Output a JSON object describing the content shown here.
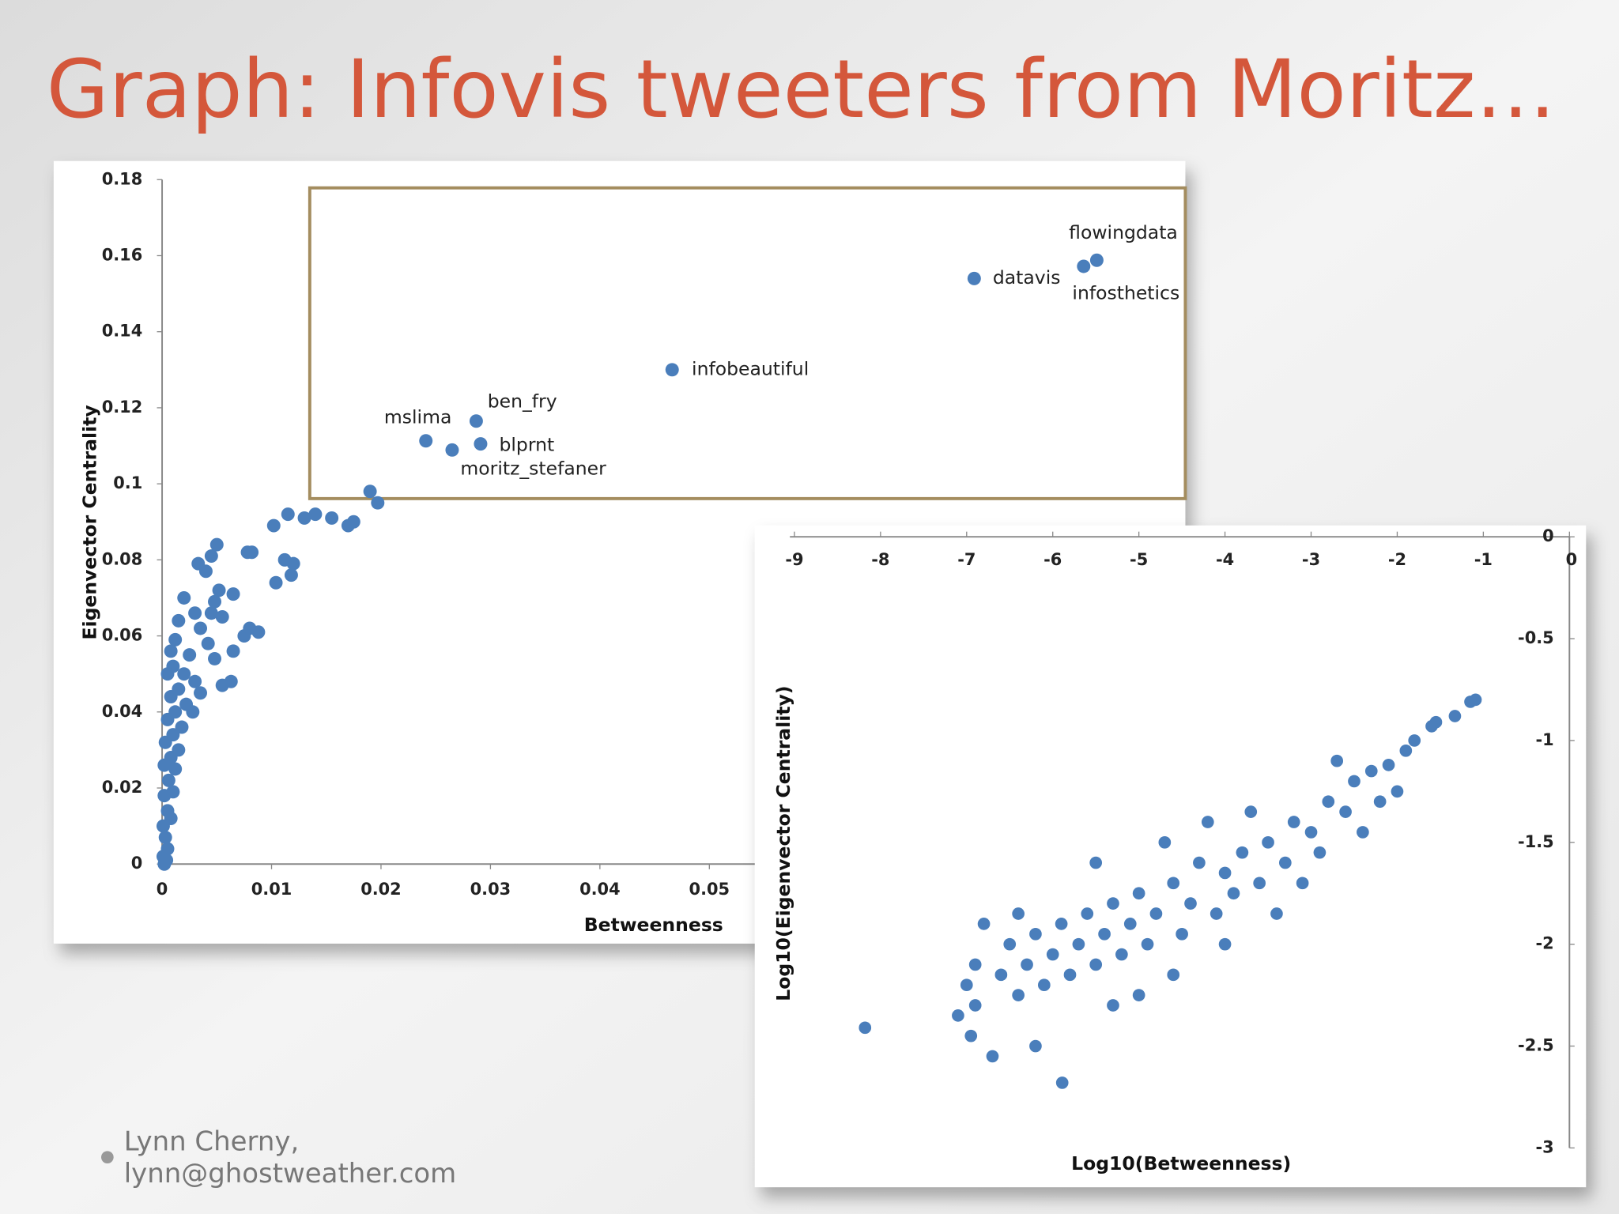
{
  "title": "Graph: Infovis tweeters from Moritz…",
  "footer": [
    "Lynn Cherny,",
    "lynn@ghostweather.com"
  ],
  "chart_data": [
    {
      "type": "scatter",
      "xlabel": "Betweenness",
      "ylabel": "Eigenvector Centrality",
      "color": "#4a7ebb",
      "xlim": [
        0,
        0.09
      ],
      "ylim": [
        0,
        0.18
      ],
      "xticks": [
        0,
        0.01,
        0.02,
        0.03,
        0.04,
        0.05
      ],
      "yticks": [
        0,
        0.02,
        0.04,
        0.06,
        0.08,
        0.1,
        0.12,
        0.14,
        0.16,
        0.18
      ],
      "labels": [
        "flowingdata",
        "infosthetics",
        "datavis",
        "infobeautiful",
        "ben_fry",
        "blprnt",
        "mslima",
        "moritz_stefaner",
        null,
        null,
        null,
        null,
        null,
        null,
        null,
        null,
        null,
        null,
        null,
        null,
        null,
        null,
        null,
        null,
        null,
        null,
        null,
        null,
        null,
        null,
        null,
        null,
        null,
        null,
        null,
        null,
        null,
        null,
        null,
        null,
        null,
        null,
        null,
        null,
        null,
        null,
        null,
        null,
        null,
        null,
        null,
        null,
        null,
        null,
        null,
        null,
        null,
        null,
        null,
        null,
        null,
        null,
        null,
        null,
        null,
        null,
        null,
        null,
        null,
        null,
        null,
        null,
        null,
        null,
        null,
        null
      ],
      "x": [
        0.0854,
        0.0842,
        0.0742,
        0.0466,
        0.0287,
        0.0291,
        0.0241,
        0.0265,
        0.019,
        0.0197,
        0.0175,
        0.017,
        0.0155,
        0.014,
        0.013,
        0.0115,
        0.0102,
        0.012,
        0.0112,
        0.0118,
        0.0104,
        0.0082,
        0.0078,
        0.0088,
        0.008,
        0.0075,
        0.0065,
        0.0063,
        0.0055,
        0.005,
        0.0045,
        0.0033,
        0.004,
        0.0065,
        0.0052,
        0.0048,
        0.002,
        0.003,
        0.0045,
        0.0055,
        0.0035,
        0.0015,
        0.0042,
        0.0048,
        0.0025,
        0.0012,
        0.0008,
        0.002,
        0.003,
        0.0035,
        0.001,
        0.0005,
        0.0015,
        0.0022,
        0.0028,
        0.0008,
        0.0012,
        0.0018,
        0.0005,
        0.001,
        0.0015,
        0.0003,
        0.0008,
        0.0012,
        0.0002,
        0.0006,
        0.001,
        0.0002,
        0.0005,
        0.0008,
        0.0001,
        0.0003,
        0.0005,
        0.0001,
        0.0002,
        0.0004
      ],
      "y": [
        0.1588,
        0.1572,
        0.154,
        0.13,
        0.1165,
        0.1105,
        0.1113,
        0.1089,
        0.098,
        0.095,
        0.09,
        0.089,
        0.091,
        0.092,
        0.091,
        0.092,
        0.089,
        0.079,
        0.08,
        0.076,
        0.074,
        0.082,
        0.082,
        0.061,
        0.062,
        0.06,
        0.056,
        0.048,
        0.047,
        0.084,
        0.081,
        0.079,
        0.077,
        0.071,
        0.072,
        0.069,
        0.07,
        0.066,
        0.066,
        0.065,
        0.062,
        0.064,
        0.058,
        0.054,
        0.055,
        0.059,
        0.056,
        0.05,
        0.048,
        0.045,
        0.052,
        0.05,
        0.046,
        0.042,
        0.04,
        0.044,
        0.04,
        0.036,
        0.038,
        0.034,
        0.03,
        0.032,
        0.028,
        0.025,
        0.026,
        0.022,
        0.019,
        0.018,
        0.014,
        0.012,
        0.01,
        0.007,
        0.004,
        0.002,
        0,
        0.001
      ]
    },
    {
      "type": "scatter",
      "xlabel": "Log10(Betweenness)",
      "ylabel": "Log10(Eigenvector Centrality)",
      "color": "#4a7ebb",
      "xlim": [
        -9,
        0
      ],
      "ylim": [
        -3,
        0
      ],
      "xticks": [
        -9,
        -8,
        -7,
        -6,
        -5,
        -4,
        -3,
        -2,
        -1,
        0
      ],
      "yticks": [
        0,
        -0.5,
        -1,
        -1.5,
        -2,
        -2.5,
        -3
      ],
      "x": [
        -8.18,
        -5.89,
        -1.09,
        -1.15,
        -1.33,
        -1.55,
        -1.6,
        -1.8,
        -1.9,
        -2.1,
        -2.3,
        -2.5,
        -2.2,
        -2.6,
        -2.8,
        -3.0,
        -2.9,
        -3.2,
        -3.3,
        -3.5,
        -3.6,
        -3.8,
        -3.9,
        -4.0,
        -4.1,
        -4.3,
        -4.4,
        -4.5,
        -4.6,
        -4.8,
        -4.9,
        -5.0,
        -5.1,
        -5.2,
        -5.3,
        -5.4,
        -5.5,
        -5.6,
        -5.7,
        -5.8,
        -5.9,
        -6.0,
        -6.1,
        -6.2,
        -6.3,
        -6.4,
        -6.5,
        -6.6,
        -6.8,
        -6.9,
        -7.0,
        -7.1,
        -6.95,
        -6.7,
        -6.2,
        -6.9,
        -4.2,
        -3.7,
        -4.7,
        -5.5,
        -4.0,
        -3.4,
        -5.0,
        -2.4,
        -3.1,
        -5.3,
        -4.6,
        -6.4,
        -2.7,
        -2.0
      ],
      "y": [
        -2.41,
        -2.68,
        -0.8,
        -0.81,
        -0.88,
        -0.91,
        -0.93,
        -1.0,
        -1.05,
        -1.12,
        -1.15,
        -1.2,
        -1.3,
        -1.35,
        -1.3,
        -1.45,
        -1.55,
        -1.4,
        -1.6,
        -1.5,
        -1.7,
        -1.55,
        -1.75,
        -1.65,
        -1.85,
        -1.6,
        -1.8,
        -1.95,
        -1.7,
        -1.85,
        -2.0,
        -1.75,
        -1.9,
        -2.05,
        -1.8,
        -1.95,
        -2.1,
        -1.85,
        -2.0,
        -2.15,
        -1.9,
        -2.05,
        -2.2,
        -1.95,
        -2.1,
        -2.25,
        -2.0,
        -2.15,
        -1.9,
        -2.3,
        -2.2,
        -2.35,
        -2.45,
        -2.55,
        -2.5,
        -2.1,
        -1.4,
        -1.35,
        -1.5,
        -1.6,
        -2.0,
        -1.85,
        -2.25,
        -1.45,
        -1.7,
        -2.3,
        -2.15,
        -1.85,
        -1.1,
        -1.25
      ]
    }
  ]
}
